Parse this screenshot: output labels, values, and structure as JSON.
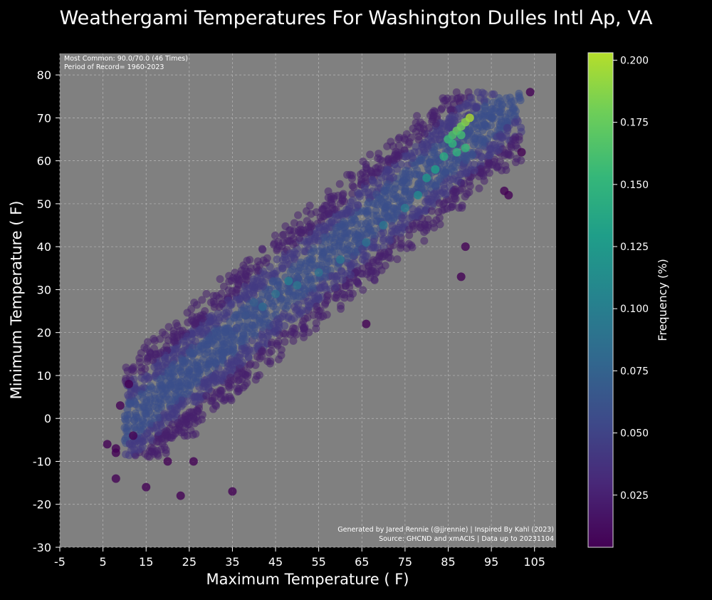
{
  "chart_data": {
    "type": "scatter",
    "title": "Weathergami Temperatures For Washington Dulles Intl Ap, VA",
    "xlabel": "Maximum Temperature ( F)",
    "ylabel": "Minimum Temperature ( F)",
    "xlim": [
      -5,
      110
    ],
    "ylim": [
      -30,
      85
    ],
    "xticks": [
      "-5",
      "5",
      "15",
      "25",
      "35",
      "45",
      "55",
      "65",
      "75",
      "85",
      "95",
      "105"
    ],
    "yticks": [
      "-30",
      "-20",
      "-10",
      "0",
      "10",
      "20",
      "30",
      "40",
      "50",
      "60",
      "70",
      "80"
    ],
    "grid": true,
    "plot_background": "#808080",
    "figure_background": "#000000",
    "marker": "circle",
    "colormap": "viridis",
    "colorbar": {
      "label": "Frequency (%)",
      "range": [
        0.004,
        0.203
      ],
      "ticks": [
        "0.025",
        "0.050",
        "0.075",
        "0.100",
        "0.125",
        "0.150",
        "0.175",
        "0.200"
      ]
    },
    "annotations": {
      "most_common": "Most Common: 90.0/70.0 (46 Times)",
      "period": "Period of Record= 1960-2023",
      "credit": "Generated by Jared Rennie (@jjrennie) | Inspired By Kahl (2023)",
      "source": "Source: GHCND and xmACIS | Data up to 20231104"
    },
    "points": [
      {
        "x": 90,
        "y": 70,
        "freq": 0.2
      },
      {
        "x": 89,
        "y": 69,
        "freq": 0.19
      },
      {
        "x": 88,
        "y": 68,
        "freq": 0.18
      },
      {
        "x": 87,
        "y": 67,
        "freq": 0.175
      },
      {
        "x": 86,
        "y": 66,
        "freq": 0.165
      },
      {
        "x": 88,
        "y": 66,
        "freq": 0.16
      },
      {
        "x": 85,
        "y": 65,
        "freq": 0.155
      },
      {
        "x": 86,
        "y": 64,
        "freq": 0.15
      },
      {
        "x": 89,
        "y": 63,
        "freq": 0.15
      },
      {
        "x": 87,
        "y": 62,
        "freq": 0.145
      },
      {
        "x": 84,
        "y": 61,
        "freq": 0.14
      },
      {
        "x": 82,
        "y": 58,
        "freq": 0.13
      },
      {
        "x": 80,
        "y": 56,
        "freq": 0.12
      },
      {
        "x": 78,
        "y": 52,
        "freq": 0.11
      },
      {
        "x": 75,
        "y": 49,
        "freq": 0.095
      },
      {
        "x": 70,
        "y": 45,
        "freq": 0.09
      },
      {
        "x": 66,
        "y": 41,
        "freq": 0.085
      },
      {
        "x": 60,
        "y": 37,
        "freq": 0.09
      },
      {
        "x": 55,
        "y": 34,
        "freq": 0.085
      },
      {
        "x": 50,
        "y": 31,
        "freq": 0.09
      },
      {
        "x": 48,
        "y": 32,
        "freq": 0.1
      },
      {
        "x": 45,
        "y": 29,
        "freq": 0.085
      },
      {
        "x": 42,
        "y": 26,
        "freq": 0.08
      },
      {
        "x": 40,
        "y": 27,
        "freq": 0.07
      },
      {
        "x": 38,
        "y": 24,
        "freq": 0.06
      },
      {
        "x": 36,
        "y": 21,
        "freq": 0.055
      },
      {
        "x": 104,
        "y": 76,
        "freq": 0.005
      },
      {
        "x": 102,
        "y": 62,
        "freq": 0.005
      },
      {
        "x": 98,
        "y": 53,
        "freq": 0.005
      },
      {
        "x": 99,
        "y": 52,
        "freq": 0.005
      },
      {
        "x": 88,
        "y": 33,
        "freq": 0.005
      },
      {
        "x": 89,
        "y": 40,
        "freq": 0.005
      },
      {
        "x": 66,
        "y": 22,
        "freq": 0.005
      },
      {
        "x": 6,
        "y": -6,
        "freq": 0.005
      },
      {
        "x": 8,
        "y": -8,
        "freq": 0.005
      },
      {
        "x": 8,
        "y": -7,
        "freq": 0.005
      },
      {
        "x": 8,
        "y": -14,
        "freq": 0.005
      },
      {
        "x": 15,
        "y": -16,
        "freq": 0.005
      },
      {
        "x": 23,
        "y": -18,
        "freq": 0.005
      },
      {
        "x": 35,
        "y": -17,
        "freq": 0.005
      },
      {
        "x": 11,
        "y": 8,
        "freq": 0.005
      },
      {
        "x": 9,
        "y": 3,
        "freq": 0.005
      },
      {
        "x": 12,
        "y": -4,
        "freq": 0.005
      },
      {
        "x": 20,
        "y": -10,
        "freq": 0.005
      },
      {
        "x": 26,
        "y": -10,
        "freq": 0.005
      }
    ]
  }
}
